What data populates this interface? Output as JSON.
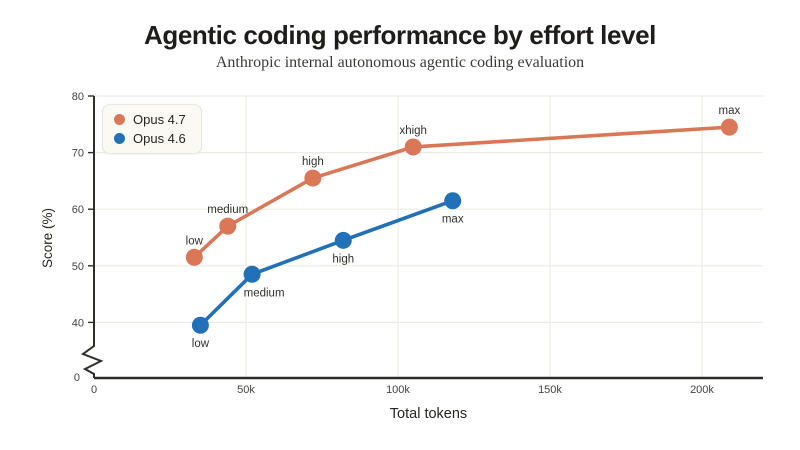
{
  "colors": {
    "grid": "#edebe5",
    "axis": "#2e2d2a",
    "tick_text": "#454440",
    "label_text": "#32312d",
    "title_text": "#1e1d1b",
    "subtitle_text": "#3b3a36",
    "legend_bg": "#faf9f4",
    "legend_border": "#e8e5db",
    "series_orange": "#d97757",
    "series_blue": "#2170b8"
  },
  "chart_data": {
    "type": "line",
    "title": "Agentic coding performance by effort level",
    "subtitle": "Anthropic internal autonomous agentic coding evaluation",
    "xlabel": "Total tokens",
    "ylabel": "Score (%)",
    "x_ticks": [
      {
        "label": "0",
        "value": 0
      },
      {
        "label": "50k",
        "value": 50000
      },
      {
        "label": "100k",
        "value": 100000
      },
      {
        "label": "150k",
        "value": 150000
      },
      {
        "label": "200k",
        "value": 200000
      }
    ],
    "y_ticks": [
      {
        "label": "0",
        "value": 0
      },
      {
        "label": "40",
        "value": 40
      },
      {
        "label": "50",
        "value": 50
      },
      {
        "label": "60",
        "value": 60
      },
      {
        "label": "70",
        "value": 70
      },
      {
        "label": "80",
        "value": 80
      }
    ],
    "xlim": [
      0,
      220000
    ],
    "ylim": [
      0,
      80
    ],
    "y_display_min": 40,
    "axis_break": true,
    "grid": true,
    "legend_position": "top-left",
    "series": [
      {
        "name": "Opus 4.7",
        "color": "#d97757",
        "points": [
          {
            "label": "low",
            "tokens": 33000,
            "score": 51.5,
            "label_pos": "above"
          },
          {
            "label": "medium",
            "tokens": 44000,
            "score": 57,
            "label_pos": "above"
          },
          {
            "label": "high",
            "tokens": 72000,
            "score": 65.5,
            "label_pos": "above"
          },
          {
            "label": "xhigh",
            "tokens": 105000,
            "score": 71,
            "label_pos": "above"
          },
          {
            "label": "max",
            "tokens": 209000,
            "score": 74.5,
            "label_pos": "above"
          }
        ]
      },
      {
        "name": "Opus 4.6",
        "color": "#2170b8",
        "points": [
          {
            "label": "low",
            "tokens": 35000,
            "score": 39.5,
            "label_pos": "below"
          },
          {
            "label": "medium",
            "tokens": 52000,
            "score": 48.5,
            "label_pos": "below",
            "label_dx": 12
          },
          {
            "label": "high",
            "tokens": 82000,
            "score": 54.5,
            "label_pos": "below"
          },
          {
            "label": "max",
            "tokens": 118000,
            "score": 61.5,
            "label_pos": "below"
          }
        ]
      }
    ]
  }
}
